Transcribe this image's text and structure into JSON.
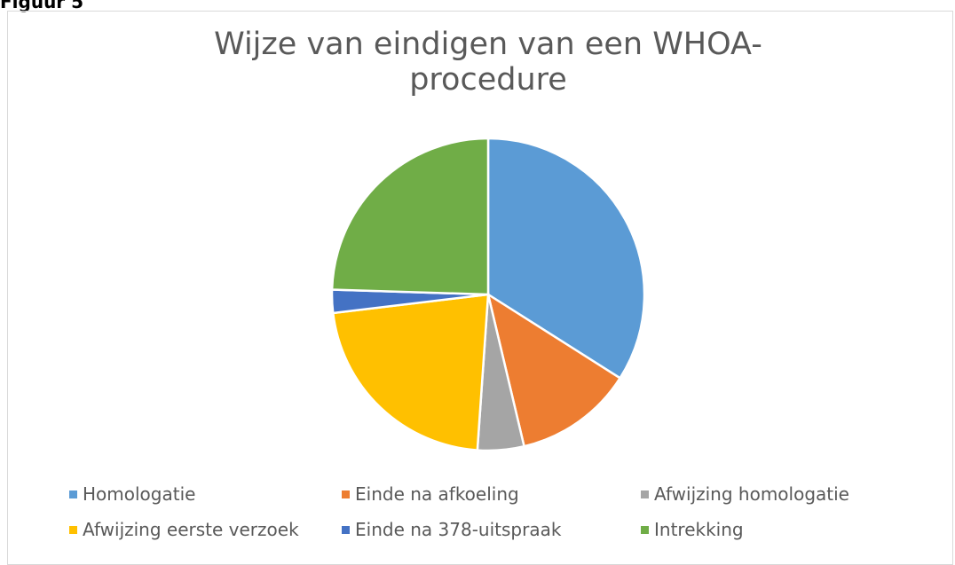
{
  "heading": "Figuur 5",
  "chart_data": {
    "type": "pie",
    "title": "Wijze van eindigen van een WHOA-procedure",
    "categories": [
      "Homologatie",
      "Einde na afkoeling",
      "Afwijzing homologatie",
      "Afwijzing eerste verzoek",
      "Einde na 378-uitspraak",
      "Intrekking"
    ],
    "values": [
      34,
      12.3,
      4.8,
      22,
      2.4,
      24.5
    ],
    "colors": [
      "#5b9bd5",
      "#ed7d31",
      "#a5a5a5",
      "#ffc000",
      "#4472c4",
      "#70ad47"
    ]
  }
}
